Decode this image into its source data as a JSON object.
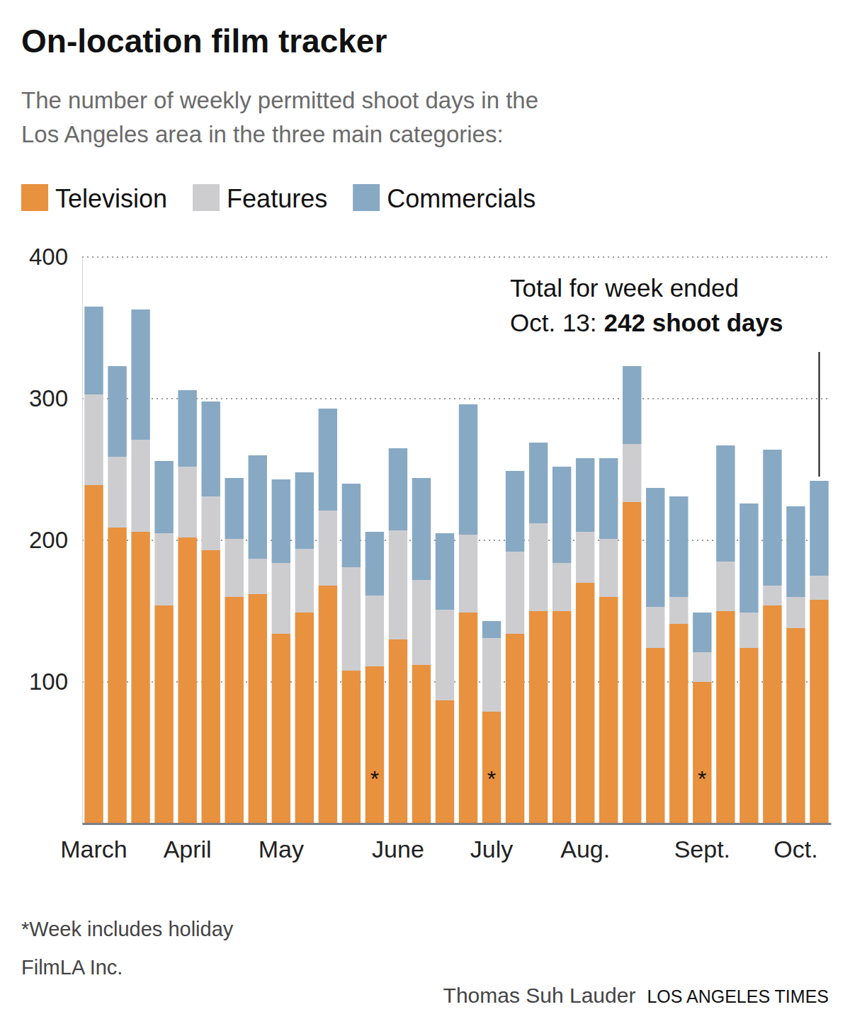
{
  "chart_data": {
    "type": "bar",
    "stacked": true,
    "grid": true,
    "legend": "top",
    "title": "On-location film tracker",
    "subtitle": [
      "The number of weekly permitted shoot days in the",
      "Los Angeles area in the three main categories:"
    ],
    "categories": [
      "March",
      null,
      null,
      null,
      "April",
      null,
      null,
      null,
      "May",
      null,
      null,
      null,
      null,
      "June",
      null,
      null,
      null,
      "July",
      null,
      null,
      null,
      "Aug.",
      null,
      null,
      null,
      null,
      "Sept.",
      null,
      null,
      null,
      "Oct.",
      null
    ],
    "category_notes": [
      null,
      null,
      null,
      null,
      null,
      null,
      null,
      null,
      null,
      null,
      null,
      null,
      "*",
      null,
      null,
      null,
      null,
      "*",
      null,
      null,
      null,
      null,
      null,
      null,
      null,
      null,
      "*",
      null,
      null,
      null,
      null,
      null
    ],
    "series": [
      {
        "name": "Television",
        "color": "#e8913f",
        "values": [
          239,
          209,
          206,
          154,
          202,
          193,
          160,
          162,
          134,
          149,
          168,
          108,
          111,
          130,
          112,
          87,
          149,
          79,
          134,
          150,
          150,
          170,
          160,
          227,
          124,
          141,
          100,
          150,
          124,
          154,
          138,
          158
        ]
      },
      {
        "name": "Features",
        "color": "#cdcdd0",
        "values": [
          64,
          50,
          65,
          51,
          50,
          38,
          41,
          25,
          50,
          45,
          53,
          73,
          50,
          77,
          60,
          64,
          55,
          52,
          58,
          62,
          34,
          36,
          41,
          41,
          29,
          19,
          21,
          35,
          25,
          14,
          22,
          17
        ]
      },
      {
        "name": "Commercials",
        "color": "#87a9c4",
        "values": [
          62,
          64,
          92,
          51,
          54,
          67,
          43,
          73,
          59,
          54,
          72,
          59,
          45,
          58,
          72,
          54,
          92,
          12,
          57,
          57,
          68,
          52,
          57,
          55,
          84,
          71,
          28,
          82,
          77,
          96,
          64,
          67
        ]
      }
    ],
    "ylim": [
      0,
      400
    ],
    "yticks": [
      100,
      200,
      300,
      400
    ],
    "annotation": {
      "text": [
        "Total for week ended",
        "Oct. 13:"
      ],
      "highlight": "242 shoot days"
    },
    "notes": [
      "*Week includes holiday",
      "FilmLA Inc."
    ],
    "credit": "Thomas Suh Lauder",
    "source": "LOS ANGELES TIMES"
  }
}
